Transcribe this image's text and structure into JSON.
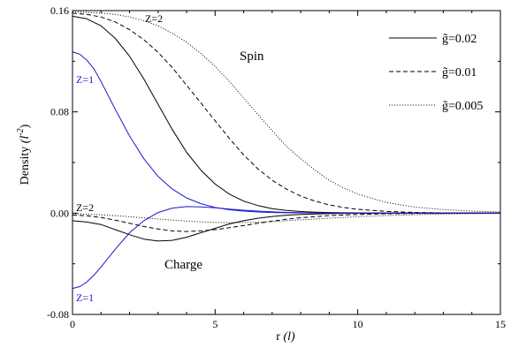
{
  "chart_data": {
    "type": "line",
    "title": "",
    "xlabel": "r",
    "xlabel_unit": "(l)",
    "ylabel": "Density",
    "ylabel_unit": "(l",
    "ylabel_unit_exp": "-2",
    "ylabel_unit_close": ")",
    "xlim": [
      0,
      15
    ],
    "ylim": [
      -0.08,
      0.16
    ],
    "x_major_ticks": [
      0,
      5,
      10,
      15
    ],
    "x_tick_labels": [
      "0",
      "5",
      "10",
      "15"
    ],
    "y_major_ticks": [
      -0.08,
      0,
      0.08,
      0.16
    ],
    "y_tick_labels": [
      "-0.08",
      "0.00",
      "0.08",
      "0.16"
    ],
    "grid": false,
    "legend_position": "top-right",
    "legend": [
      {
        "label": "g̃=0.02",
        "style": "solid"
      },
      {
        "label": "g̃=0.01",
        "style": "dashed"
      },
      {
        "label": "g̃=0.005",
        "style": "dotted"
      }
    ],
    "annotations": {
      "spin": "Spin",
      "charge": "Charge",
      "z2_top": "Z=2",
      "z1_top": "Z=1",
      "z2_mid": "Z=2",
      "z1_bottom": "Z=1"
    },
    "series": [
      {
        "group": "spin",
        "style": "solid",
        "color": "#000000",
        "x": [
          0,
          0.5,
          1,
          1.5,
          2,
          2.5,
          3,
          3.5,
          4,
          4.5,
          5,
          5.5,
          6,
          6.5,
          7,
          7.5,
          8,
          8.5,
          9,
          9.5,
          10,
          11,
          12,
          13,
          14,
          15
        ],
        "y": [
          0.1555,
          0.1535,
          0.148,
          0.138,
          0.124,
          0.106,
          0.086,
          0.066,
          0.048,
          0.034,
          0.023,
          0.015,
          0.0095,
          0.006,
          0.0035,
          0.0021,
          0.0013,
          0.0008,
          0.0005,
          0.0003,
          0.0002,
          0.0001,
          5e-05,
          2e-05,
          1e-05,
          0
        ]
      },
      {
        "group": "spin",
        "style": "dashed",
        "color": "#000000",
        "x": [
          0,
          0.5,
          1,
          1.5,
          2,
          2.5,
          3,
          3.5,
          4,
          4.5,
          5,
          5.5,
          6,
          6.5,
          7,
          7.5,
          8,
          8.5,
          9,
          9.5,
          10,
          11,
          12,
          13,
          14,
          15
        ],
        "y": [
          0.158,
          0.157,
          0.155,
          0.151,
          0.145,
          0.137,
          0.127,
          0.115,
          0.101,
          0.087,
          0.073,
          0.059,
          0.046,
          0.035,
          0.026,
          0.019,
          0.0135,
          0.0095,
          0.0065,
          0.0045,
          0.003,
          0.0014,
          0.0006,
          0.00025,
          0.0001,
          0
        ]
      },
      {
        "group": "spin",
        "style": "dotted",
        "color": "#000000",
        "x": [
          0,
          0.5,
          1,
          1.5,
          2,
          2.5,
          3,
          3.5,
          4,
          4.5,
          5,
          5.5,
          6,
          6.5,
          7,
          7.5,
          8,
          8.5,
          9,
          9.5,
          10,
          11,
          12,
          13,
          14,
          15
        ],
        "y": [
          0.159,
          0.1585,
          0.158,
          0.157,
          0.155,
          0.152,
          0.148,
          0.142,
          0.135,
          0.126,
          0.116,
          0.104,
          0.091,
          0.078,
          0.065,
          0.053,
          0.043,
          0.034,
          0.026,
          0.02,
          0.015,
          0.0085,
          0.0048,
          0.0028,
          0.0016,
          0.001
        ]
      },
      {
        "group": "spin",
        "style": "solid",
        "color": "#1a1acc",
        "x": [
          0,
          0.25,
          0.5,
          0.75,
          1,
          1.5,
          2,
          2.5,
          3,
          3.5,
          4,
          4.5,
          5,
          5.5,
          6,
          6.5,
          7,
          7.5,
          8,
          9,
          10,
          11,
          12,
          13,
          14,
          15
        ],
        "y": [
          0.1275,
          0.1255,
          0.121,
          0.114,
          0.104,
          0.082,
          0.061,
          0.043,
          0.029,
          0.019,
          0.012,
          0.0075,
          0.0045,
          0.0027,
          0.0016,
          0.0009,
          0.0005,
          0.0003,
          0.0002,
          0.0001,
          4e-05,
          2e-05,
          1e-05,
          0,
          0,
          0
        ]
      },
      {
        "group": "charge",
        "style": "solid",
        "color": "#000000",
        "x": [
          0,
          0.5,
          1,
          1.5,
          2,
          2.5,
          3,
          3.5,
          4,
          4.5,
          5,
          5.5,
          6,
          6.5,
          7,
          7.5,
          8,
          9,
          10,
          11,
          12,
          13,
          14,
          15
        ],
        "y": [
          -0.006,
          -0.007,
          -0.009,
          -0.013,
          -0.017,
          -0.0205,
          -0.022,
          -0.0215,
          -0.019,
          -0.0155,
          -0.012,
          -0.0085,
          -0.006,
          -0.004,
          -0.0026,
          -0.0016,
          -0.001,
          -0.0004,
          -0.00015,
          -5e-05,
          -2e-05,
          0,
          0,
          0
        ]
      },
      {
        "group": "charge",
        "style": "dashed",
        "color": "#000000",
        "x": [
          0,
          0.5,
          1,
          1.5,
          2,
          2.5,
          3,
          3.5,
          4,
          4.5,
          5,
          5.5,
          6,
          6.5,
          7,
          7.5,
          8,
          9,
          10,
          11,
          12,
          13,
          14,
          15
        ],
        "y": [
          -0.0015,
          -0.002,
          -0.0035,
          -0.0055,
          -0.008,
          -0.0105,
          -0.0125,
          -0.014,
          -0.0145,
          -0.014,
          -0.013,
          -0.0115,
          -0.0098,
          -0.008,
          -0.0063,
          -0.0048,
          -0.0036,
          -0.0019,
          -0.001,
          -0.0005,
          -0.00025,
          -0.0001,
          -5e-05,
          0
        ]
      },
      {
        "group": "charge",
        "style": "dotted",
        "color": "#000000",
        "x": [
          0,
          0.5,
          1,
          1.5,
          2,
          2.5,
          3,
          3.5,
          4,
          4.5,
          5,
          5.5,
          6,
          6.5,
          7,
          7.5,
          8,
          9,
          10,
          11,
          12,
          13,
          14,
          15
        ],
        "y": [
          -0.0005,
          -0.0008,
          -0.0013,
          -0.002,
          -0.0028,
          -0.0037,
          -0.0046,
          -0.0055,
          -0.0063,
          -0.0069,
          -0.0073,
          -0.0075,
          -0.0074,
          -0.0071,
          -0.0066,
          -0.006,
          -0.0053,
          -0.004,
          -0.0028,
          -0.0019,
          -0.0012,
          -0.0007,
          -0.0004,
          -0.0002
        ]
      },
      {
        "group": "charge",
        "style": "solid",
        "color": "#1a1acc",
        "x": [
          0,
          0.25,
          0.5,
          0.75,
          1,
          1.5,
          2,
          2.5,
          3,
          3.5,
          4,
          4.5,
          5,
          5.5,
          6,
          6.5,
          7,
          7.5,
          8,
          9,
          10,
          11,
          12,
          13,
          14,
          15
        ],
        "y": [
          -0.0595,
          -0.058,
          -0.0545,
          -0.049,
          -0.0425,
          -0.0285,
          -0.0155,
          -0.006,
          0.0005,
          0.004,
          0.0052,
          0.005,
          0.0042,
          0.0032,
          0.0023,
          0.0016,
          0.001,
          0.0006,
          0.0004,
          0.0001,
          5e-05,
          2e-05,
          0,
          0,
          0,
          0
        ]
      }
    ]
  }
}
